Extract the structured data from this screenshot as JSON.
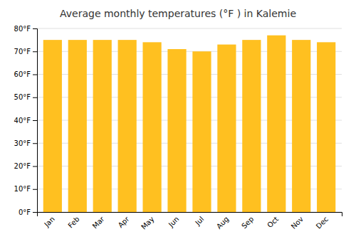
{
  "chart_data": {
    "type": "bar",
    "title": "Average monthly temperatures (°F ) in Kalemie",
    "categories": [
      "Jan",
      "Feb",
      "Mar",
      "Apr",
      "May",
      "Jun",
      "Jul",
      "Aug",
      "Sep",
      "Oct",
      "Nov",
      "Dec"
    ],
    "values": [
      75,
      75,
      75,
      75,
      74,
      71,
      70,
      73,
      75,
      77,
      75,
      74
    ],
    "color": "#FFC020",
    "ylim": [
      0,
      80
    ],
    "yticks": [
      {
        "value": 0,
        "label": "0°F"
      },
      {
        "value": 10,
        "label": "10°F"
      },
      {
        "value": 20,
        "label": "20°F"
      },
      {
        "value": 30,
        "label": "30°F"
      },
      {
        "value": 40,
        "label": "40°F"
      },
      {
        "value": 50,
        "label": "50°F"
      },
      {
        "value": 60,
        "label": "60°F"
      },
      {
        "value": 70,
        "label": "70°F"
      },
      {
        "value": 80,
        "label": "80°F"
      }
    ],
    "grid": true
  }
}
